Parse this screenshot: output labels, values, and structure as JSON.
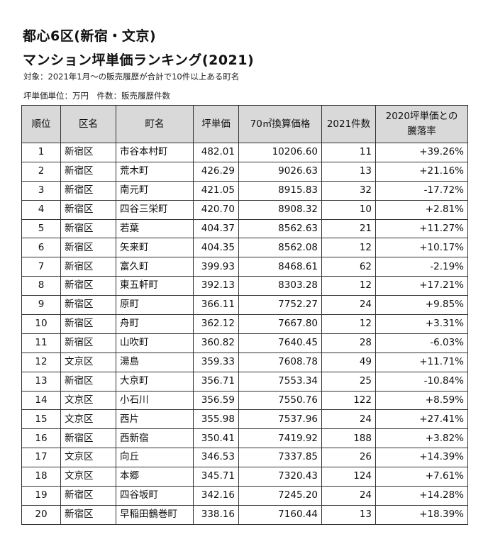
{
  "title_line1": "都心6区(新宿・文京)",
  "title_line2": "マンション坪単価ランキング(2021)",
  "note_target": "対象：2021年1月～の販売履歴が合計で10件以上ある町名",
  "note_units": "坪単価単位：万円　件数：販売履歴件数",
  "table": {
    "headers": {
      "rank": "順位",
      "ward": "区名",
      "town": "町名",
      "tsubo_price": "坪単価",
      "price_70": "70㎡換算価格",
      "count_2021": "2021件数",
      "change_line1": "2020坪単価との",
      "change_line2": "騰落率"
    },
    "rows": [
      {
        "rank": "1",
        "ward": "新宿区",
        "town": "市谷本村町",
        "tsubo_price": "482.01",
        "price_70": "10206.60",
        "count_2021": "11",
        "change": "+39.26%"
      },
      {
        "rank": "2",
        "ward": "新宿区",
        "town": "荒木町",
        "tsubo_price": "426.29",
        "price_70": "9026.63",
        "count_2021": "13",
        "change": "+21.16%"
      },
      {
        "rank": "3",
        "ward": "新宿区",
        "town": "南元町",
        "tsubo_price": "421.05",
        "price_70": "8915.83",
        "count_2021": "32",
        "change": "-17.72%"
      },
      {
        "rank": "4",
        "ward": "新宿区",
        "town": "四谷三栄町",
        "tsubo_price": "420.70",
        "price_70": "8908.32",
        "count_2021": "10",
        "change": "+2.81%"
      },
      {
        "rank": "5",
        "ward": "新宿区",
        "town": "若葉",
        "tsubo_price": "404.37",
        "price_70": "8562.63",
        "count_2021": "21",
        "change": "+11.27%"
      },
      {
        "rank": "6",
        "ward": "新宿区",
        "town": "矢来町",
        "tsubo_price": "404.35",
        "price_70": "8562.08",
        "count_2021": "12",
        "change": "+10.17%"
      },
      {
        "rank": "7",
        "ward": "新宿区",
        "town": "富久町",
        "tsubo_price": "399.93",
        "price_70": "8468.61",
        "count_2021": "62",
        "change": "-2.19%"
      },
      {
        "rank": "8",
        "ward": "新宿区",
        "town": "東五軒町",
        "tsubo_price": "392.13",
        "price_70": "8303.28",
        "count_2021": "12",
        "change": "+17.21%"
      },
      {
        "rank": "9",
        "ward": "新宿区",
        "town": "原町",
        "tsubo_price": "366.11",
        "price_70": "7752.27",
        "count_2021": "24",
        "change": "+9.85%"
      },
      {
        "rank": "10",
        "ward": "新宿区",
        "town": "舟町",
        "tsubo_price": "362.12",
        "price_70": "7667.80",
        "count_2021": "12",
        "change": "+3.31%"
      },
      {
        "rank": "11",
        "ward": "新宿区",
        "town": "山吹町",
        "tsubo_price": "360.82",
        "price_70": "7640.45",
        "count_2021": "28",
        "change": "-6.03%"
      },
      {
        "rank": "12",
        "ward": "文京区",
        "town": "湯島",
        "tsubo_price": "359.33",
        "price_70": "7608.78",
        "count_2021": "49",
        "change": "+11.71%"
      },
      {
        "rank": "13",
        "ward": "新宿区",
        "town": "大京町",
        "tsubo_price": "356.71",
        "price_70": "7553.34",
        "count_2021": "25",
        "change": "-10.84%"
      },
      {
        "rank": "14",
        "ward": "文京区",
        "town": "小石川",
        "tsubo_price": "356.59",
        "price_70": "7550.76",
        "count_2021": "122",
        "change": "+8.59%"
      },
      {
        "rank": "15",
        "ward": "文京区",
        "town": "西片",
        "tsubo_price": "355.98",
        "price_70": "7537.96",
        "count_2021": "24",
        "change": "+27.41%"
      },
      {
        "rank": "16",
        "ward": "新宿区",
        "town": "西新宿",
        "tsubo_price": "350.41",
        "price_70": "7419.92",
        "count_2021": "188",
        "change": "+3.82%"
      },
      {
        "rank": "17",
        "ward": "文京区",
        "town": "向丘",
        "tsubo_price": "346.53",
        "price_70": "7337.85",
        "count_2021": "26",
        "change": "+14.39%"
      },
      {
        "rank": "18",
        "ward": "文京区",
        "town": "本郷",
        "tsubo_price": "345.71",
        "price_70": "7320.43",
        "count_2021": "124",
        "change": "+7.61%"
      },
      {
        "rank": "19",
        "ward": "新宿区",
        "town": "四谷坂町",
        "tsubo_price": "342.16",
        "price_70": "7245.20",
        "count_2021": "24",
        "change": "+14.28%"
      },
      {
        "rank": "20",
        "ward": "新宿区",
        "town": "早稲田鶴巻町",
        "tsubo_price": "338.16",
        "price_70": "7160.44",
        "count_2021": "13",
        "change": "+18.39%"
      }
    ]
  }
}
